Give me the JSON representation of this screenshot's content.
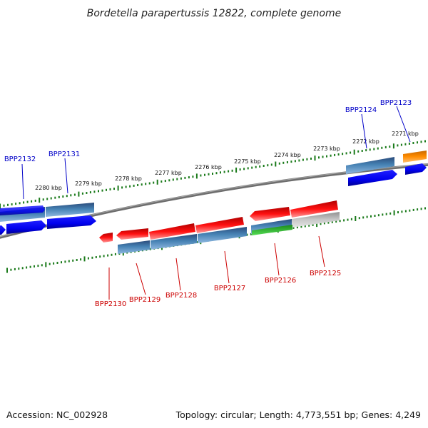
{
  "title": "Bordetella parapertussis 12822, complete genome",
  "footer": {
    "accession": "Accession: NC_002928",
    "topology": "Topology: circular; Length: 4,773,551 bp; Genes: 4,249"
  },
  "scale_labels": [
    "2280 kbp",
    "2279 kbp",
    "2278 kbp",
    "2277 kbp",
    "2276 kbp",
    "2275 kbp",
    "2274 kbp",
    "2273 kbp",
    "2272 kbp",
    "2271 kbp"
  ],
  "upper_genes": [
    "BPP2132",
    "BPP2131",
    "BPP2124",
    "BPP2123"
  ],
  "lower_genes": [
    "BPP2130",
    "BPP2129",
    "BPP2128",
    "BPP2127",
    "BPP2126",
    "BPP2125"
  ],
  "colors": {
    "upper_label": "#0000c8",
    "lower_label": "#cc0000",
    "cds": "#0000ee",
    "gene_blue": "#4682b4",
    "gene_red": "#ee0000",
    "orange": "#ff8c00",
    "green": "#2db82d",
    "grey": "#b8b8b8",
    "tick": "#1a7a1a",
    "backbone": "#7a7a7a"
  }
}
